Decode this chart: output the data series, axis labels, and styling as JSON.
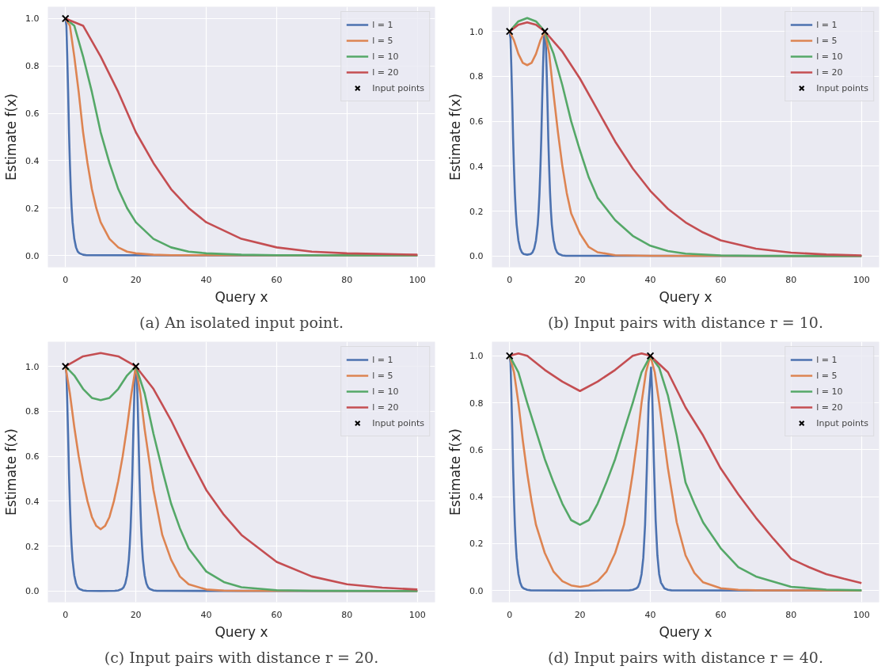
{
  "chart_data": [
    {
      "type": "line",
      "title": "(a) An isolated input point.",
      "xlabel": "Query x",
      "ylabel": "Estimate f(x)",
      "xlim": [
        -5,
        105
      ],
      "ylim": [
        -0.05,
        1.05
      ],
      "xticks": [
        0,
        20,
        40,
        60,
        80,
        100
      ],
      "yticks": [
        {
          "value": 0,
          "label": "0.0"
        },
        {
          "value": 0.2,
          "label": "0.2"
        },
        {
          "value": 0.4,
          "label": "0.4"
        },
        {
          "value": 0.6,
          "label": "0.6"
        },
        {
          "value": 0.8,
          "label": "0.8"
        },
        {
          "value": 1,
          "label": "1.0"
        }
      ],
      "grid": true,
      "legend": "top right",
      "line_style": "solid",
      "series": [
        {
          "name": "l = 1",
          "color": "#4c72b0",
          "x": [
            0,
            0.25,
            0.5,
            0.75,
            1,
            1.25,
            1.5,
            1.75,
            2,
            2.5,
            3,
            3.5,
            4,
            5,
            6,
            100
          ],
          "values": [
            1,
            0.97,
            0.84,
            0.69,
            0.52,
            0.39,
            0.28,
            0.2,
            0.14,
            0.07,
            0.034,
            0.016,
            0.009,
            0.003,
            0.001,
            0
          ]
        },
        {
          "name": "l = 5",
          "color": "#dd8452",
          "x": [
            0,
            1.25,
            2.5,
            3.75,
            5,
            6.25,
            7.5,
            8.75,
            10,
            12.5,
            15,
            17.5,
            20,
            25,
            30,
            100
          ],
          "values": [
            1,
            0.97,
            0.84,
            0.69,
            0.52,
            0.39,
            0.28,
            0.2,
            0.14,
            0.07,
            0.034,
            0.016,
            0.009,
            0.003,
            0.001,
            0
          ]
        },
        {
          "name": "l = 10",
          "color": "#55a868",
          "x": [
            0,
            2.5,
            5,
            7.5,
            10,
            12.5,
            15,
            17.5,
            20,
            25,
            30,
            35,
            40,
            50,
            60,
            100
          ],
          "values": [
            1,
            0.97,
            0.84,
            0.69,
            0.52,
            0.39,
            0.28,
            0.2,
            0.14,
            0.07,
            0.034,
            0.016,
            0.009,
            0.003,
            0.001,
            0
          ]
        },
        {
          "name": "l = 20",
          "color": "#c44e52",
          "x": [
            0,
            5,
            10,
            15,
            20,
            25,
            30,
            35,
            40,
            50,
            60,
            70,
            80,
            100
          ],
          "values": [
            1,
            0.97,
            0.84,
            0.69,
            0.52,
            0.39,
            0.28,
            0.2,
            0.14,
            0.07,
            0.034,
            0.016,
            0.009,
            0.003
          ]
        },
        {
          "name": "Input points",
          "type": "scatter",
          "marker": "cross",
          "color": "#000000",
          "x": [
            0
          ],
          "values": [
            1
          ]
        }
      ]
    },
    {
      "type": "line",
      "title": "(b) Input pairs with distance r = 10.",
      "xlabel": "Query x",
      "ylabel": "Estimate f(x)",
      "xlim": [
        -5,
        105
      ],
      "ylim": [
        -0.05,
        1.11
      ],
      "xticks": [
        0,
        20,
        40,
        60,
        80,
        100
      ],
      "yticks": [
        {
          "value": 0,
          "label": "0.0"
        },
        {
          "value": 0.2,
          "label": "0.2"
        },
        {
          "value": 0.4,
          "label": "0.4"
        },
        {
          "value": 0.6,
          "label": "0.6"
        },
        {
          "value": 0.8,
          "label": "0.8"
        },
        {
          "value": 1,
          "label": "1.0"
        }
      ],
      "grid": true,
      "legend": "top right",
      "line_style": "solid",
      "series": [
        {
          "name": "l = 1",
          "color": "#4c72b0",
          "x": [
            0,
            0.25,
            0.5,
            0.75,
            1,
            1.25,
            1.5,
            1.75,
            2,
            2.5,
            3,
            3.5,
            4,
            5,
            6,
            6.5,
            7,
            7.5,
            8,
            8.25,
            8.5,
            8.75,
            9,
            9.25,
            9.5,
            9.75,
            10,
            10.25,
            10.5,
            10.75,
            11,
            11.25,
            11.5,
            11.75,
            12,
            12.5,
            13,
            13.5,
            14,
            15,
            16,
            100
          ],
          "values": [
            1,
            0.97,
            0.84,
            0.69,
            0.52,
            0.39,
            0.28,
            0.2,
            0.14,
            0.07,
            0.034,
            0.016,
            0.009,
            0.006,
            0.009,
            0.016,
            0.034,
            0.07,
            0.14,
            0.2,
            0.28,
            0.39,
            0.52,
            0.69,
            0.84,
            0.97,
            1,
            0.97,
            0.84,
            0.69,
            0.52,
            0.39,
            0.28,
            0.2,
            0.14,
            0.07,
            0.034,
            0.016,
            0.009,
            0.003,
            0.001,
            0
          ]
        },
        {
          "name": "l = 5",
          "color": "#dd8452",
          "x": [
            0,
            1.25,
            2.5,
            3.75,
            5,
            6.25,
            7.5,
            8.75,
            10,
            11.25,
            12.5,
            13.75,
            15,
            16.25,
            17.5,
            20,
            22.5,
            25,
            30,
            40,
            100
          ],
          "values": [
            1,
            0.96,
            0.9,
            0.86,
            0.85,
            0.86,
            0.9,
            0.96,
            1,
            0.9,
            0.72,
            0.55,
            0.4,
            0.28,
            0.19,
            0.1,
            0.04,
            0.017,
            0.004,
            0.001,
            0
          ]
        },
        {
          "name": "l = 10",
          "color": "#55a868",
          "x": [
            0,
            2.5,
            5,
            7.5,
            10,
            12.5,
            15,
            17.5,
            20,
            22.5,
            25,
            30,
            35,
            40,
            45,
            50,
            60,
            70,
            100
          ],
          "values": [
            1,
            1.045,
            1.06,
            1.045,
            1,
            0.9,
            0.76,
            0.6,
            0.47,
            0.35,
            0.26,
            0.16,
            0.09,
            0.046,
            0.022,
            0.011,
            0.003,
            0.001,
            0
          ]
        },
        {
          "name": "l = 20",
          "color": "#c44e52",
          "x": [
            0,
            2.5,
            5,
            7.5,
            10,
            15,
            20,
            25,
            30,
            35,
            40,
            45,
            50,
            55,
            60,
            70,
            80,
            90,
            100
          ],
          "values": [
            1,
            1.03,
            1.04,
            1.03,
            1,
            0.91,
            0.79,
            0.65,
            0.51,
            0.39,
            0.29,
            0.21,
            0.15,
            0.105,
            0.07,
            0.033,
            0.015,
            0.007,
            0.003
          ]
        },
        {
          "name": "Input points",
          "type": "scatter",
          "marker": "cross",
          "color": "#000000",
          "x": [
            0,
            10
          ],
          "values": [
            1,
            1
          ]
        }
      ]
    },
    {
      "type": "line",
      "title": "(c) Input pairs with distance r = 20.",
      "xlabel": "Query x",
      "ylabel": "Estimate f(x)",
      "xlim": [
        -5,
        105
      ],
      "ylim": [
        -0.05,
        1.11
      ],
      "xticks": [
        0,
        20,
        40,
        60,
        80,
        100
      ],
      "yticks": [
        {
          "value": 0,
          "label": "0.0"
        },
        {
          "value": 0.2,
          "label": "0.2"
        },
        {
          "value": 0.4,
          "label": "0.4"
        },
        {
          "value": 0.6,
          "label": "0.6"
        },
        {
          "value": 0.8,
          "label": "0.8"
        },
        {
          "value": 1,
          "label": "1.0"
        }
      ],
      "grid": true,
      "legend": "top right",
      "line_style": "solid",
      "series": [
        {
          "name": "l = 1",
          "color": "#4c72b0",
          "x": [
            0,
            0.25,
            0.5,
            0.75,
            1,
            1.25,
            1.5,
            1.75,
            2,
            2.5,
            3,
            3.5,
            4,
            5,
            6,
            10,
            14,
            15,
            16,
            16.5,
            17,
            17.5,
            18,
            18.25,
            18.5,
            18.75,
            19,
            19.25,
            19.5,
            19.75,
            20,
            20.25,
            20.5,
            20.75,
            21,
            21.25,
            21.5,
            21.75,
            22,
            22.5,
            23,
            23.5,
            24,
            25,
            26,
            100
          ],
          "values": [
            1,
            0.97,
            0.84,
            0.69,
            0.52,
            0.39,
            0.28,
            0.2,
            0.14,
            0.07,
            0.034,
            0.016,
            0.009,
            0.003,
            0.001,
            0,
            0.001,
            0.003,
            0.009,
            0.016,
            0.034,
            0.07,
            0.14,
            0.2,
            0.28,
            0.39,
            0.52,
            0.69,
            0.84,
            0.97,
            1,
            0.97,
            0.84,
            0.69,
            0.52,
            0.39,
            0.28,
            0.2,
            0.14,
            0.07,
            0.034,
            0.016,
            0.009,
            0.003,
            0.001,
            0
          ]
        },
        {
          "name": "l = 5",
          "color": "#dd8452",
          "x": [
            0,
            1.25,
            2.5,
            3.75,
            5,
            6.25,
            7.5,
            8.75,
            10,
            11.25,
            12.5,
            13.75,
            15,
            16.25,
            17.5,
            18.75,
            20,
            21.25,
            22.5,
            25,
            27.5,
            30,
            32.5,
            35,
            40,
            45,
            50,
            100
          ],
          "values": [
            1,
            0.88,
            0.73,
            0.6,
            0.49,
            0.4,
            0.33,
            0.29,
            0.275,
            0.29,
            0.33,
            0.4,
            0.49,
            0.6,
            0.73,
            0.88,
            1,
            0.88,
            0.72,
            0.45,
            0.25,
            0.14,
            0.065,
            0.03,
            0.007,
            0.002,
            0.001,
            0
          ]
        },
        {
          "name": "l = 10",
          "color": "#55a868",
          "x": [
            0,
            2.5,
            5,
            7.5,
            10,
            12.5,
            15,
            17.5,
            20,
            22.5,
            25,
            27.5,
            30,
            32.5,
            35,
            40,
            45,
            50,
            60,
            70,
            100
          ],
          "values": [
            1,
            0.96,
            0.9,
            0.86,
            0.85,
            0.86,
            0.9,
            0.96,
            1,
            0.88,
            0.7,
            0.54,
            0.39,
            0.28,
            0.19,
            0.087,
            0.04,
            0.017,
            0.004,
            0.001,
            0
          ]
        },
        {
          "name": "l = 20",
          "color": "#c44e52",
          "x": [
            0,
            5,
            10,
            15,
            20,
            25,
            30,
            35,
            40,
            45,
            50,
            60,
            70,
            80,
            90,
            100
          ],
          "values": [
            1,
            1.045,
            1.06,
            1.045,
            1,
            0.9,
            0.76,
            0.6,
            0.45,
            0.34,
            0.25,
            0.13,
            0.065,
            0.03,
            0.015,
            0.007
          ]
        },
        {
          "name": "Input points",
          "type": "scatter",
          "marker": "cross",
          "color": "#000000",
          "x": [
            0,
            20
          ],
          "values": [
            1,
            1
          ]
        }
      ]
    },
    {
      "type": "line",
      "title": "(d) Input pairs with distance r = 40.",
      "xlabel": "Query x",
      "ylabel": "Estimate f(x)",
      "xlim": [
        -5,
        105
      ],
      "ylim": [
        -0.05,
        1.06
      ],
      "xticks": [
        0,
        20,
        40,
        60,
        80,
        100
      ],
      "yticks": [
        {
          "value": 0,
          "label": "0.0"
        },
        {
          "value": 0.2,
          "label": "0.2"
        },
        {
          "value": 0.4,
          "label": "0.4"
        },
        {
          "value": 0.6,
          "label": "0.6"
        },
        {
          "value": 0.8,
          "label": "0.8"
        },
        {
          "value": 1,
          "label": "1.0"
        }
      ],
      "grid": true,
      "legend": "top right",
      "line_style": "solid",
      "series": [
        {
          "name": "l = 1",
          "color": "#4c72b0",
          "x": [
            0,
            0.25,
            0.5,
            0.75,
            1,
            1.25,
            1.5,
            1.75,
            2,
            2.5,
            3,
            3.5,
            4,
            5,
            6,
            20,
            34,
            35,
            36,
            36.5,
            37,
            37.5,
            38,
            38.5,
            39,
            39.5,
            40.2,
            40.5,
            41,
            41.5,
            42,
            42.5,
            43,
            44,
            45,
            46,
            100
          ],
          "values": [
            1,
            0.97,
            0.84,
            0.69,
            0.52,
            0.39,
            0.28,
            0.2,
            0.14,
            0.07,
            0.034,
            0.016,
            0.009,
            0.003,
            0.001,
            0,
            0.001,
            0.003,
            0.009,
            0.016,
            0.034,
            0.07,
            0.14,
            0.28,
            0.52,
            0.8,
            0.95,
            0.85,
            0.55,
            0.3,
            0.15,
            0.07,
            0.034,
            0.009,
            0.003,
            0.001,
            0
          ]
        },
        {
          "name": "l = 5",
          "color": "#dd8452",
          "x": [
            0,
            1.25,
            2.5,
            3.75,
            5,
            6.25,
            7.5,
            10,
            12.5,
            15,
            17.5,
            20,
            22.5,
            25,
            27.5,
            30,
            32.5,
            33.75,
            35,
            36.25,
            37.5,
            38.75,
            40,
            41.25,
            42.5,
            45,
            47.5,
            50,
            52.5,
            55,
            60,
            65,
            70,
            100
          ],
          "values": [
            1,
            0.93,
            0.8,
            0.64,
            0.5,
            0.38,
            0.28,
            0.16,
            0.08,
            0.04,
            0.022,
            0.016,
            0.022,
            0.04,
            0.08,
            0.16,
            0.28,
            0.38,
            0.5,
            0.64,
            0.8,
            0.93,
            1,
            0.93,
            0.8,
            0.52,
            0.29,
            0.15,
            0.075,
            0.035,
            0.01,
            0.003,
            0.001,
            0
          ]
        },
        {
          "name": "l = 10",
          "color": "#55a868",
          "x": [
            0,
            2.5,
            5,
            7.5,
            10,
            12.5,
            15,
            17.5,
            20,
            22.5,
            25,
            27.5,
            30,
            32.5,
            35,
            37.5,
            40,
            42.5,
            45,
            47.5,
            50,
            52.5,
            55,
            60,
            65,
            70,
            80,
            90,
            100
          ],
          "values": [
            1,
            0.93,
            0.8,
            0.68,
            0.56,
            0.46,
            0.37,
            0.3,
            0.28,
            0.3,
            0.37,
            0.46,
            0.56,
            0.68,
            0.8,
            0.93,
            1,
            0.95,
            0.83,
            0.66,
            0.46,
            0.37,
            0.29,
            0.18,
            0.1,
            0.06,
            0.016,
            0.004,
            0.001
          ]
        },
        {
          "name": "l = 20",
          "color": "#c44e52",
          "x": [
            0,
            2.5,
            5,
            10,
            15,
            20,
            25,
            30,
            35,
            37.5,
            40,
            45,
            50,
            55,
            60,
            65,
            70,
            75,
            80,
            85,
            90,
            95,
            100
          ],
          "values": [
            1,
            1.01,
            1,
            0.94,
            0.89,
            0.85,
            0.89,
            0.94,
            1,
            1.01,
            1,
            0.93,
            0.78,
            0.66,
            0.52,
            0.41,
            0.31,
            0.22,
            0.135,
            0.1,
            0.07,
            0.05,
            0.032
          ]
        },
        {
          "name": "Input points",
          "type": "scatter",
          "marker": "cross",
          "color": "#000000",
          "x": [
            0,
            40
          ],
          "values": [
            1,
            1
          ]
        }
      ]
    }
  ]
}
